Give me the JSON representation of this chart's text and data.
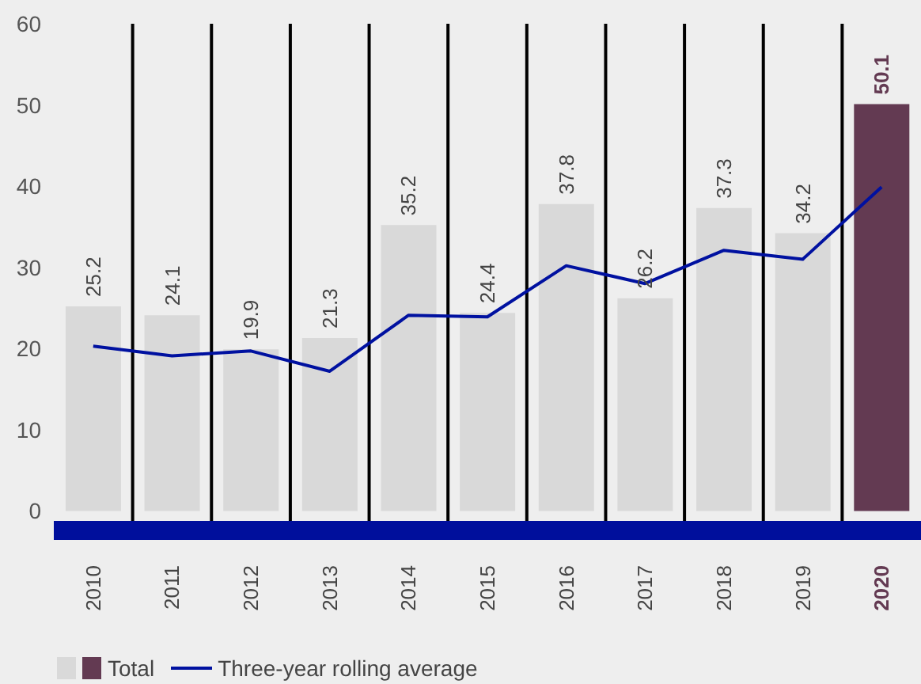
{
  "chart_data": {
    "type": "bar",
    "categories": [
      "2010",
      "2011",
      "2012",
      "2013",
      "2014",
      "2015",
      "2016",
      "2017",
      "2018",
      "2019",
      "2020"
    ],
    "series": [
      {
        "name": "Total",
        "value_labels": [
          "25.2",
          "24.1",
          "19.9",
          "21.3",
          "35.2",
          "24.4",
          "37.8",
          "26.2",
          "37.3",
          "34.2",
          "50.1"
        ],
        "color": "#d9d9d9",
        "colors": [
          "#d9d9d9",
          "#d9d9d9",
          "#d9d9d9",
          "#d9d9d9",
          "#d9d9d9",
          "#d9d9d9",
          "#d9d9d9",
          "#d9d9d9",
          "#d9d9d9",
          "#d9d9d9",
          "#633a52"
        ],
        "values": [
          25.2,
          24.1,
          19.9,
          21.3,
          35.2,
          24.4,
          37.8,
          26.2,
          37.3,
          34.2,
          50.1
        ]
      },
      {
        "name": "Three-year rolling average",
        "type": "line",
        "color": "#0011a0",
        "values": [
          20.3,
          19.1,
          19.7,
          17.2,
          24.1,
          23.9,
          30.2,
          28.0,
          32.1,
          31.0,
          39.9
        ]
      }
    ],
    "ylim": [
      -2.4,
      60
    ],
    "yticks": [
      0,
      10,
      20,
      30,
      40,
      50,
      60
    ],
    "grid": "x",
    "legend": "bottom left",
    "marker": "none"
  }
}
